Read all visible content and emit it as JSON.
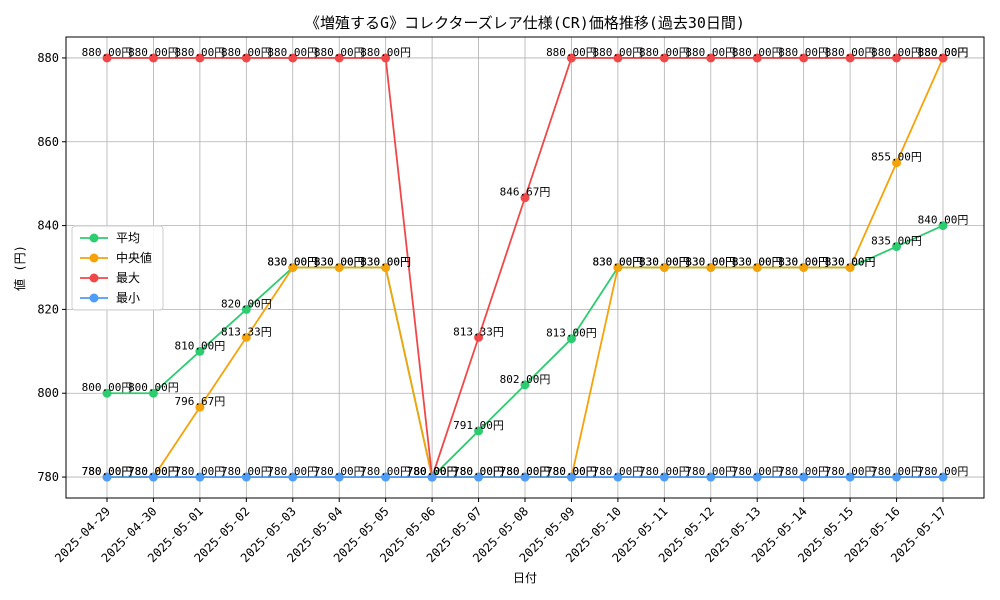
{
  "chart_data": {
    "type": "line",
    "title": "《増殖するG》コレクターズレア仕様(CR)価格推移(過去30日間)",
    "xlabel": "日付",
    "ylabel": "値 (円)",
    "ylim": [
      775,
      885
    ],
    "yticks": [
      780,
      800,
      820,
      840,
      860,
      880
    ],
    "grid": true,
    "legend_position": "center-left",
    "label_suffix": "円",
    "categories": [
      "2025-04-29",
      "2025-04-30",
      "2025-05-01",
      "2025-05-02",
      "2025-05-03",
      "2025-05-04",
      "2025-05-05",
      "2025-05-06",
      "2025-05-07",
      "2025-05-08",
      "2025-05-09",
      "2025-05-10",
      "2025-05-11",
      "2025-05-12",
      "2025-05-13",
      "2025-05-14",
      "2025-05-15",
      "2025-05-16",
      "2025-05-17"
    ],
    "series": [
      {
        "name": "平均",
        "color": "#2ecc71",
        "values": [
          800,
          800,
          810,
          820,
          830,
          830,
          830,
          780,
          791,
          802,
          813,
          830,
          830,
          830,
          830,
          830,
          830,
          835,
          840
        ]
      },
      {
        "name": "中央値",
        "color": "#f5a30a",
        "values": [
          780,
          780,
          796.67,
          813.33,
          830,
          830,
          830,
          780,
          780,
          780,
          780,
          830,
          830,
          830,
          830,
          830,
          830,
          855,
          880
        ]
      },
      {
        "name": "最大",
        "color": "#f04848",
        "values": [
          880,
          880,
          880,
          880,
          880,
          880,
          880,
          780,
          813.33,
          846.67,
          880,
          880,
          880,
          880,
          880,
          880,
          880,
          880,
          880
        ]
      },
      {
        "name": "最小",
        "color": "#4d9cf5",
        "values": [
          780,
          780,
          780,
          780,
          780,
          780,
          780,
          780,
          780,
          780,
          780,
          780,
          780,
          780,
          780,
          780,
          780,
          780,
          780
        ]
      }
    ]
  }
}
